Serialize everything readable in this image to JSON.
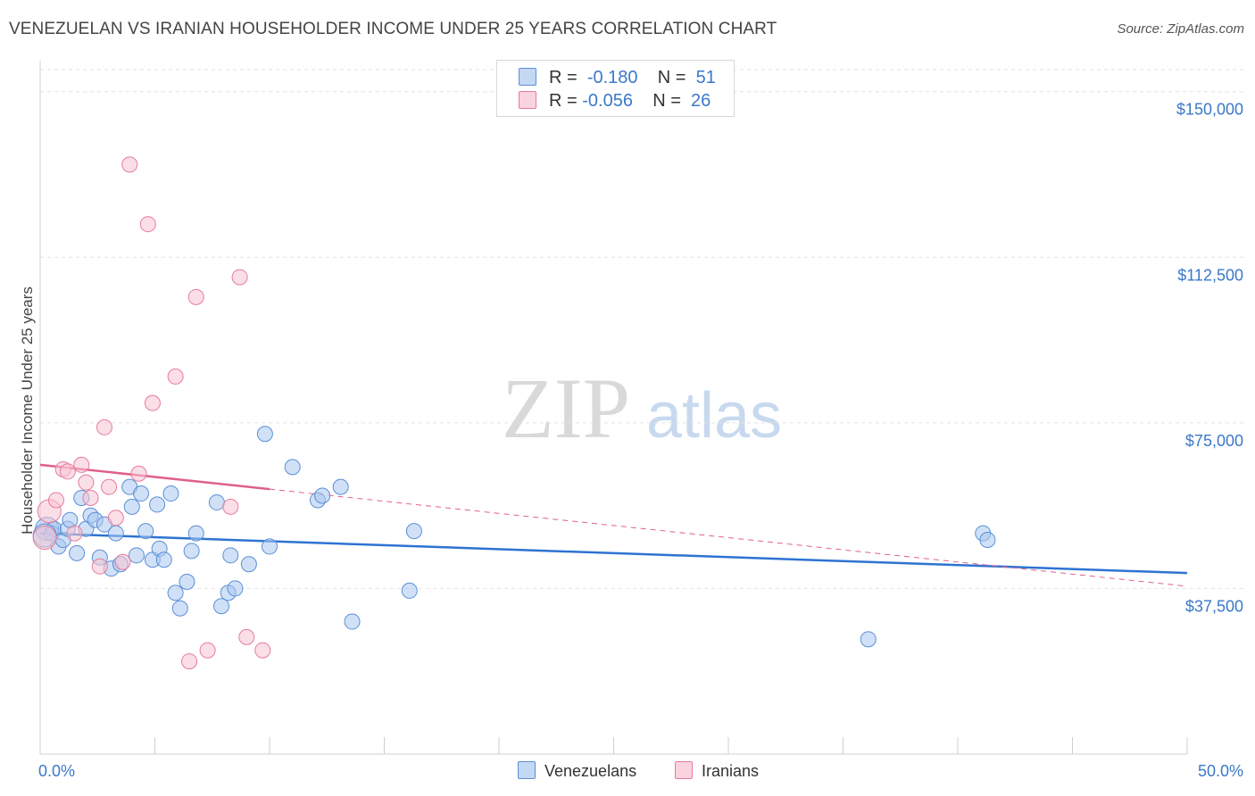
{
  "title": "VENEZUELAN VS IRANIAN HOUSEHOLDER INCOME UNDER 25 YEARS CORRELATION CHART",
  "source": "Source: ZipAtlas.com",
  "watermark": {
    "zip": "ZIP",
    "atlas": "atlas"
  },
  "legend": {
    "r_label": "R =",
    "n_label": "N =",
    "rows": [
      {
        "r": "-0.180",
        "n": "51",
        "color": "#a9c8f0",
        "border": "#5b8fd6"
      },
      {
        "r": "-0.056",
        "n": "26",
        "color": "#f7c5d3",
        "border": "#e77b9c"
      }
    ]
  },
  "bottom_legend": {
    "venezuelans": "Venezuelans",
    "iranians": "Iranians"
  },
  "chart_data": {
    "type": "scatter",
    "title": "VENEZUELAN VS IRANIAN HOUSEHOLDER INCOME UNDER 25 YEARS CORRELATION CHART",
    "xlabel": "",
    "ylabel": "Householder Income Under 25 years",
    "xlim": [
      0,
      50
    ],
    "ylim": [
      0,
      155000
    ],
    "x_tick_labels": [
      "0.0%",
      "50.0%"
    ],
    "y_ticks": [
      37500,
      75000,
      112500,
      150000
    ],
    "y_tick_labels": [
      "$37,500",
      "$75,000",
      "$112,500",
      "$150,000"
    ],
    "grid": true,
    "series": [
      {
        "name": "Venezuelans",
        "color": "#5b8fd6",
        "fill": "#a9c8f0",
        "trend": {
          "x": [
            0,
            50
          ],
          "y": [
            50000,
            41000
          ],
          "style": "solid",
          "color": "#2e73d2"
        },
        "points": [
          [
            0.3,
            51000
          ],
          [
            0.5,
            50000
          ],
          [
            0.6,
            51000
          ],
          [
            0.8,
            47000
          ],
          [
            1.0,
            48500
          ],
          [
            1.2,
            51000
          ],
          [
            1.3,
            53000
          ],
          [
            1.6,
            45500
          ],
          [
            1.8,
            58000
          ],
          [
            2.0,
            51000
          ],
          [
            2.2,
            54000
          ],
          [
            2.4,
            53000
          ],
          [
            2.6,
            44500
          ],
          [
            2.8,
            52000
          ],
          [
            3.1,
            42000
          ],
          [
            3.3,
            50000
          ],
          [
            3.5,
            43000
          ],
          [
            3.9,
            60500
          ],
          [
            4.0,
            56000
          ],
          [
            4.2,
            45000
          ],
          [
            4.4,
            59000
          ],
          [
            4.6,
            50500
          ],
          [
            4.9,
            44000
          ],
          [
            5.1,
            56500
          ],
          [
            5.2,
            46500
          ],
          [
            5.4,
            44000
          ],
          [
            5.7,
            59000
          ],
          [
            5.9,
            36500
          ],
          [
            6.1,
            33000
          ],
          [
            6.4,
            39000
          ],
          [
            6.6,
            46000
          ],
          [
            6.8,
            50000
          ],
          [
            7.7,
            57000
          ],
          [
            7.9,
            33500
          ],
          [
            8.2,
            36500
          ],
          [
            8.3,
            45000
          ],
          [
            8.5,
            37500
          ],
          [
            9.1,
            43000
          ],
          [
            9.8,
            72500
          ],
          [
            10.0,
            47000
          ],
          [
            11.0,
            65000
          ],
          [
            12.1,
            57500
          ],
          [
            12.3,
            58500
          ],
          [
            13.1,
            60500
          ],
          [
            13.6,
            30000
          ],
          [
            16.1,
            37000
          ],
          [
            16.3,
            50500
          ],
          [
            36.1,
            26000
          ],
          [
            41.1,
            50000
          ],
          [
            41.3,
            48500
          ],
          [
            0.2,
            49500
          ]
        ]
      },
      {
        "name": "Iranians",
        "color": "#e77b9c",
        "fill": "#f7c5d3",
        "trend": {
          "x": [
            0,
            10
          ],
          "y": [
            65500,
            60000
          ],
          "style": "solid",
          "color": "#e0608a",
          "extension": {
            "x": [
              10,
              50
            ],
            "y": [
              60000,
              38000
            ],
            "style": "dashed"
          }
        },
        "points": [
          [
            0.2,
            49000
          ],
          [
            0.4,
            55000
          ],
          [
            0.7,
            57500
          ],
          [
            1.0,
            64500
          ],
          [
            1.2,
            64000
          ],
          [
            1.5,
            50000
          ],
          [
            1.8,
            65500
          ],
          [
            2.0,
            61500
          ],
          [
            2.2,
            58000
          ],
          [
            2.6,
            42500
          ],
          [
            2.8,
            74000
          ],
          [
            3.0,
            60500
          ],
          [
            3.3,
            53500
          ],
          [
            3.6,
            43500
          ],
          [
            3.9,
            133500
          ],
          [
            4.3,
            63500
          ],
          [
            4.7,
            120000
          ],
          [
            4.9,
            79500
          ],
          [
            5.9,
            85500
          ],
          [
            6.5,
            21000
          ],
          [
            6.8,
            103500
          ],
          [
            7.3,
            23500
          ],
          [
            8.3,
            56000
          ],
          [
            8.7,
            108000
          ],
          [
            9.0,
            26500
          ],
          [
            9.7,
            23500
          ]
        ]
      }
    ]
  }
}
